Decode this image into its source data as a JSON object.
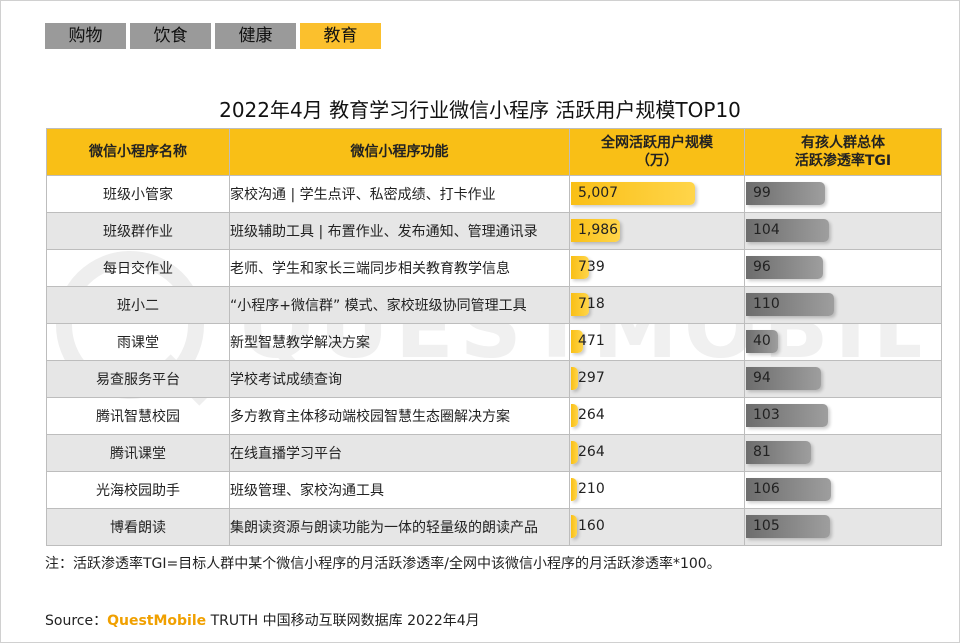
{
  "tabs": [
    {
      "label": "购物",
      "active": false
    },
    {
      "label": "饮食",
      "active": false
    },
    {
      "label": "健康",
      "active": false
    },
    {
      "label": "教育",
      "active": true
    }
  ],
  "watermark": "QUESTMOBILE",
  "colors": {
    "accent": "#f9bf16",
    "tgi_bar": "#808080",
    "alt_row": "#e6e6e6"
  },
  "chart_data": {
    "type": "table",
    "title": "2022年4月 教育学习行业微信小程序 活跃用户规模TOP10",
    "columns": [
      "微信小程序名称",
      "微信小程序功能",
      "全网活跃用户规模（万）",
      "有孩人群总体活跃渗透率TGI"
    ],
    "column_lines": [
      [
        "微信小程序名称"
      ],
      [
        "微信小程序功能"
      ],
      [
        "全网活跃用户规模",
        "（万）"
      ],
      [
        "有孩人群总体",
        "活跃渗透率TGI"
      ]
    ],
    "rows": [
      {
        "name": "班级小管家",
        "function": "家校沟通 | 学生点评、私密成绩、打卡作业",
        "users": 5007,
        "users_label": "5,007",
        "tgi": 99
      },
      {
        "name": "班级群作业",
        "function": "班级辅助工具 | 布置作业、发布通知、管理通讯录",
        "users": 1986,
        "users_label": "1,986",
        "tgi": 104
      },
      {
        "name": "每日交作业",
        "function": "老师、学生和家长三端同步相关教育教学信息",
        "users": 739,
        "users_label": "739",
        "tgi": 96
      },
      {
        "name": "班小二",
        "function": "“小程序+微信群” 模式、家校班级协同管理工具",
        "users": 718,
        "users_label": "718",
        "tgi": 110
      },
      {
        "name": "雨课堂",
        "function": "新型智慧教学解决方案",
        "users": 471,
        "users_label": "471",
        "tgi": 40
      },
      {
        "name": "易查服务平台",
        "function": "学校考试成绩查询",
        "users": 297,
        "users_label": "297",
        "tgi": 94
      },
      {
        "name": "腾讯智慧校园",
        "function": "多方教育主体移动端校园智慧生态圈解决方案",
        "users": 264,
        "users_label": "264",
        "tgi": 103
      },
      {
        "name": "腾讯课堂",
        "function": "在线直播学习平台",
        "users": 264,
        "users_label": "264",
        "tgi": 81
      },
      {
        "name": "光海校园助手",
        "function": "班级管理、家校沟通工具",
        "users": 210,
        "users_label": "210",
        "tgi": 106
      },
      {
        "name": "博看朗读",
        "function": "集朗读资源与朗读功能为一体的轻量级的朗读产品",
        "users": 160,
        "users_label": "160",
        "tgi": 105
      }
    ],
    "users_max": 5007,
    "tgi_max": 110
  },
  "note": "注：活跃渗透率TGI=目标人群中某个微信小程序的月活跃渗透率/全网中该微信小程序的月活跃渗透率*100。",
  "source": {
    "prefix": "Source：",
    "brand": "QuestMobile",
    "suffix": " TRUTH 中国移动互联网数据库 2022年4月"
  }
}
